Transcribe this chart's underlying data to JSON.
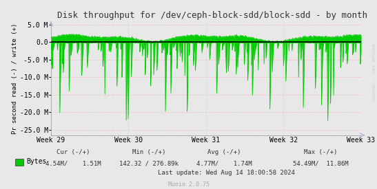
{
  "title": "Disk throughput for /dev/ceph-block-sdd/block-sdd - by month",
  "ylabel": "Pr second read (-) / write (+)",
  "ylim": [
    -26500000,
    5800000
  ],
  "yticks": [
    5000000,
    0,
    -5000000,
    -10000000,
    -15000000,
    -20000000,
    -25000000
  ],
  "ytick_labels": [
    "5.0 M",
    "0.0",
    "-5.0 M",
    "-10.0 M",
    "-15.0 M",
    "-20.0 M",
    "-25.0 M"
  ],
  "xtick_labels": [
    "Week 29",
    "Week 30",
    "Week 31",
    "Week 32",
    "Week 33"
  ],
  "background_color": "#e8e8e8",
  "plot_bg_color": "#e8e8e8",
  "hgrid_color": "#ff9999",
  "vgrid_color": "#cccccc",
  "line_color": "#00cc00",
  "fill_color": "#00cc00",
  "zero_line_color": "#000000",
  "legend_label": "Bytes",
  "legend_color": "#00cc00",
  "last_update": "Last update: Wed Aug 14 18:00:58 2024",
  "munin_version": "Munin 2.0.75",
  "watermark": "RRDTOOL / TOBI OETIKER",
  "n_points": 800,
  "seed": 42
}
